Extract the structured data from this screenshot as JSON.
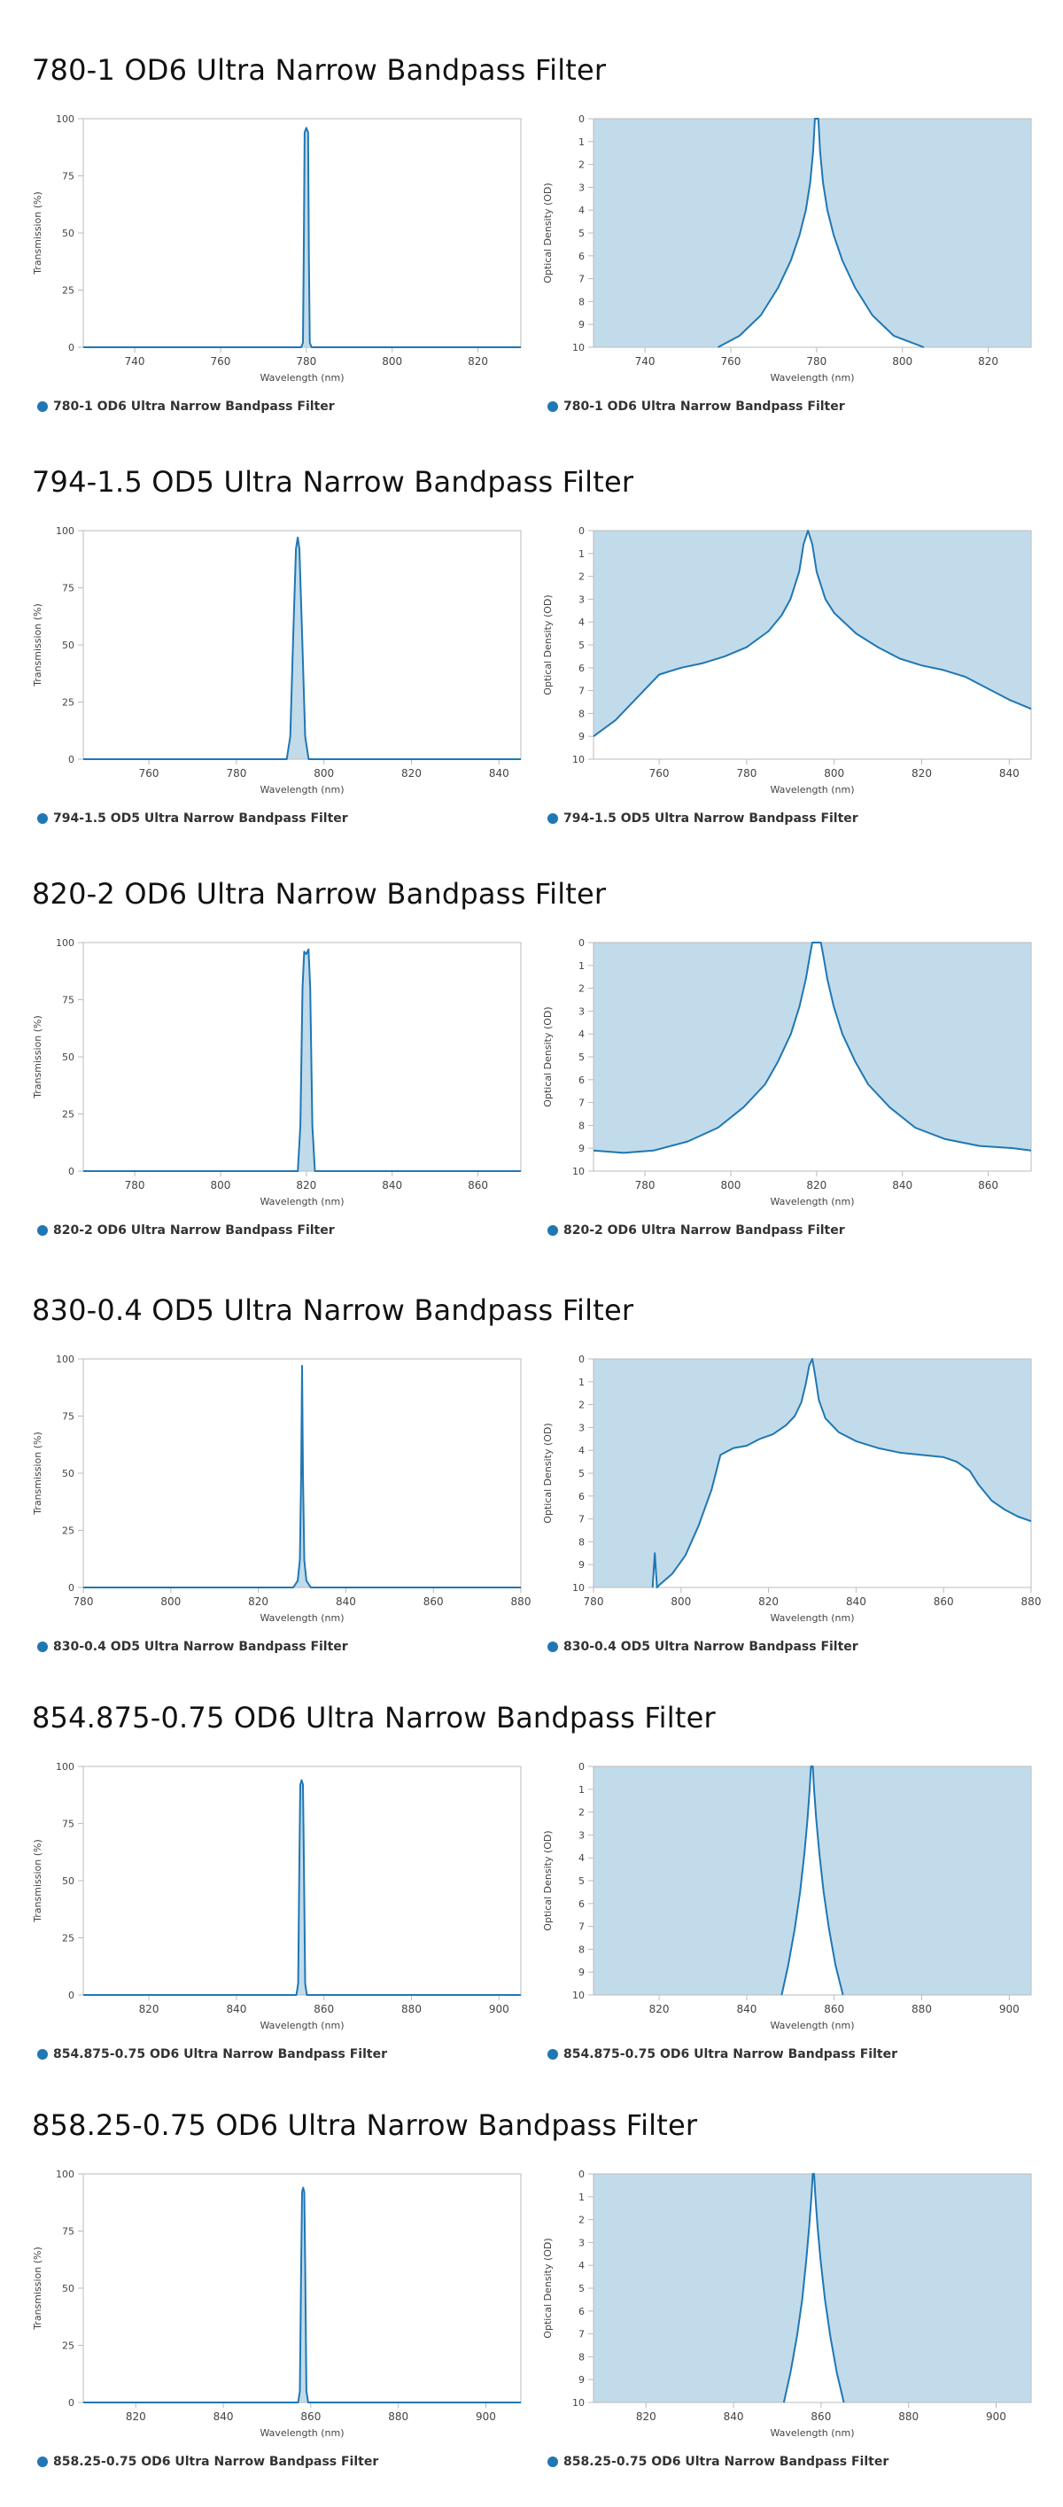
{
  "colors": {
    "series": "#1f77b4",
    "fill": "#c2dbea",
    "axis": "#bbbbbb",
    "tick_text": "#444444"
  },
  "chart_data": [
    {
      "section_title": "780-1 OD6 Ultra Narrow Bandpass Filter",
      "charts": [
        {
          "type": "area",
          "xlabel": "Wavelength (nm)",
          "ylabel": "Transmission (%)",
          "xlim": [
            728,
            830
          ],
          "ylim": [
            0,
            100
          ],
          "xticks": [
            740,
            760,
            780,
            800,
            820
          ],
          "yticks": [
            0,
            25,
            50,
            75,
            100
          ],
          "series": [
            {
              "name": "780-1 OD6 Ultra Narrow Bandpass Filter",
              "x": [
                728,
                778.8,
                779.2,
                779.4,
                779.6,
                780,
                780.4,
                780.6,
                780.8,
                781.2,
                830
              ],
              "y": [
                0,
                0,
                2,
                40,
                94,
                96,
                94,
                40,
                2,
                0,
                0
              ]
            }
          ]
        },
        {
          "type": "area",
          "xlabel": "Wavelength (nm)",
          "ylabel": "Optical Density (OD)",
          "ylim_inverted": true,
          "xlim": [
            728,
            830
          ],
          "ylim": [
            0,
            10
          ],
          "xticks": [
            740,
            760,
            780,
            800,
            820
          ],
          "yticks": [
            0,
            1,
            2,
            3,
            4,
            5,
            6,
            7,
            8,
            9,
            10
          ],
          "series": [
            {
              "name": "780-1 OD6 Ultra Narrow Bandpass Filter",
              "x": [
                757,
                762,
                767,
                771,
                774,
                776,
                777.5,
                778.5,
                779.2,
                779.6,
                780.4,
                780.8,
                781.5,
                782.5,
                784,
                786,
                789,
                793,
                798,
                805
              ],
              "y": [
                10,
                9.5,
                8.6,
                7.4,
                6.2,
                5.1,
                4,
                2.8,
                1.4,
                0,
                0,
                1.4,
                2.8,
                4,
                5.1,
                6.2,
                7.4,
                8.6,
                9.5,
                10
              ]
            }
          ]
        }
      ]
    },
    {
      "section_title": "794-1.5 OD5 Ultra Narrow Bandpass Filter",
      "charts": [
        {
          "type": "area",
          "xlabel": "Wavelength (nm)",
          "ylabel": "Transmission (%)",
          "xlim": [
            745,
            845
          ],
          "ylim": [
            0,
            100
          ],
          "xticks": [
            760,
            780,
            800,
            820,
            840
          ],
          "yticks": [
            0,
            25,
            50,
            75,
            100
          ],
          "series": [
            {
              "name": "794-1.5 OD5 Ultra Narrow Bandpass Filter",
              "x": [
                745,
                791.5,
                792.3,
                793,
                793.6,
                794,
                794.4,
                795,
                795.7,
                796.5,
                845
              ],
              "y": [
                0,
                0,
                10,
                55,
                92,
                97,
                92,
                55,
                10,
                0,
                0
              ]
            }
          ]
        },
        {
          "type": "area",
          "xlabel": "Wavelength (nm)",
          "ylabel": "Optical Density (OD)",
          "ylim_inverted": true,
          "xlim": [
            745,
            845
          ],
          "ylim": [
            0,
            10
          ],
          "xticks": [
            760,
            780,
            800,
            820,
            840
          ],
          "yticks": [
            0,
            1,
            2,
            3,
            4,
            5,
            6,
            7,
            8,
            9,
            10
          ],
          "series": [
            {
              "name": "794-1.5 OD5 Ultra Narrow Bandpass Filter",
              "x": [
                745,
                750,
                755,
                760,
                765,
                770,
                775,
                780,
                785,
                788,
                790,
                792,
                793,
                794,
                795,
                796,
                798,
                800,
                805,
                810,
                815,
                820,
                825,
                830,
                835,
                840,
                845
              ],
              "y": [
                9,
                8.3,
                7.3,
                6.3,
                6.0,
                5.8,
                5.5,
                5.1,
                4.4,
                3.7,
                3.0,
                1.8,
                0.6,
                0,
                0.6,
                1.8,
                3.0,
                3.6,
                4.5,
                5.1,
                5.6,
                5.9,
                6.1,
                6.4,
                6.9,
                7.4,
                7.8
              ]
            }
          ]
        }
      ]
    },
    {
      "section_title": "820-2 OD6 Ultra Narrow Bandpass Filter",
      "charts": [
        {
          "type": "area",
          "xlabel": "Wavelength (nm)",
          "ylabel": "Transmission (%)",
          "xlim": [
            768,
            870
          ],
          "ylim": [
            0,
            100
          ],
          "xticks": [
            780,
            800,
            820,
            840,
            860
          ],
          "yticks": [
            0,
            25,
            50,
            75,
            100
          ],
          "series": [
            {
              "name": "820-2 OD6 Ultra Narrow Bandpass Filter",
              "x": [
                768,
                818,
                818.6,
                819.1,
                819.5,
                820,
                820.5,
                820.9,
                821.4,
                822,
                870
              ],
              "y": [
                0,
                0,
                20,
                80,
                96,
                95,
                97,
                80,
                20,
                0,
                0
              ]
            }
          ]
        },
        {
          "type": "area",
          "xlabel": "Wavelength (nm)",
          "ylabel": "Optical Density (OD)",
          "ylim_inverted": true,
          "xlim": [
            768,
            870
          ],
          "ylim": [
            0,
            10
          ],
          "xticks": [
            780,
            800,
            820,
            840,
            860
          ],
          "yticks": [
            0,
            1,
            2,
            3,
            4,
            5,
            6,
            7,
            8,
            9,
            10
          ],
          "series": [
            {
              "name": "820-2 OD6 Ultra Narrow Bandpass Filter",
              "x": [
                768,
                775,
                782,
                790,
                797,
                803,
                808,
                811,
                814,
                816,
                817.5,
                818.5,
                819,
                821,
                821.5,
                822.5,
                824,
                826,
                829,
                832,
                837,
                843,
                850,
                858,
                866,
                870
              ],
              "y": [
                9.1,
                9.2,
                9.1,
                8.7,
                8.1,
                7.2,
                6.2,
                5.2,
                4.0,
                2.8,
                1.6,
                0.5,
                0,
                0,
                0.5,
                1.6,
                2.8,
                4.0,
                5.2,
                6.2,
                7.2,
                8.1,
                8.6,
                8.9,
                9.0,
                9.1
              ]
            }
          ]
        }
      ]
    },
    {
      "section_title": "830-0.4 OD5 Ultra Narrow Bandpass Filter",
      "charts": [
        {
          "type": "area",
          "xlabel": "Wavelength (nm)",
          "ylabel": "Transmission (%)",
          "xlim": [
            780,
            880
          ],
          "ylim": [
            0,
            100
          ],
          "xticks": [
            780,
            800,
            820,
            840,
            860,
            880
          ],
          "yticks": [
            0,
            25,
            50,
            75,
            100
          ],
          "series": [
            {
              "name": "830-0.4 OD5 Ultra Narrow Bandpass Filter",
              "x": [
                780,
                828,
                829,
                829.5,
                829.8,
                830,
                830.2,
                830.5,
                831,
                832,
                880
              ],
              "y": [
                0,
                0,
                3,
                12,
                50,
                97,
                50,
                12,
                3,
                0,
                0
              ]
            }
          ]
        },
        {
          "type": "area",
          "xlabel": "Wavelength (nm)",
          "ylabel": "Optical Density (OD)",
          "ylim_inverted": true,
          "xlim": [
            780,
            880
          ],
          "ylim": [
            0,
            10
          ],
          "xticks": [
            780,
            800,
            820,
            840,
            860,
            880
          ],
          "yticks": [
            0,
            1,
            2,
            3,
            4,
            5,
            6,
            7,
            8,
            9,
            10
          ],
          "series": [
            {
              "name": "830-0.4 OD5 Ultra Narrow Bandpass Filter",
              "x": [
                793.5,
                794,
                794.5,
                795,
                798,
                801,
                804,
                807,
                809,
                810,
                812,
                815,
                818,
                821,
                824,
                826,
                827.5,
                828.5,
                829.3,
                830,
                830.7,
                831.5,
                833,
                836,
                840,
                845,
                850,
                855,
                860,
                863,
                866,
                868,
                871,
                874,
                877,
                880
              ],
              "y": [
                10,
                8.5,
                10,
                9.9,
                9.4,
                8.6,
                7.3,
                5.7,
                4.2,
                4.1,
                3.9,
                3.8,
                3.5,
                3.3,
                2.9,
                2.5,
                1.9,
                1.1,
                0.3,
                0,
                0.8,
                1.8,
                2.6,
                3.2,
                3.6,
                3.9,
                4.1,
                4.2,
                4.3,
                4.5,
                4.9,
                5.5,
                6.2,
                6.6,
                6.9,
                7.1
              ]
            }
          ]
        }
      ]
    },
    {
      "section_title": "854.875-0.75 OD6 Ultra Narrow Bandpass Filter",
      "charts": [
        {
          "type": "area",
          "xlabel": "Wavelength (nm)",
          "ylabel": "Transmission (%)",
          "xlim": [
            805,
            905
          ],
          "ylim": [
            0,
            100
          ],
          "xticks": [
            820,
            840,
            860,
            880,
            900
          ],
          "yticks": [
            0,
            25,
            50,
            75,
            100
          ],
          "series": [
            {
              "name": "854.875-0.75 OD6 Ultra Narrow Bandpass Filter",
              "x": [
                805,
                853.7,
                854.1,
                854.4,
                854.6,
                854.9,
                855.2,
                855.4,
                855.7,
                856.1,
                905
              ],
              "y": [
                0,
                0,
                5,
                60,
                92,
                94,
                92,
                60,
                5,
                0,
                0
              ]
            }
          ]
        },
        {
          "type": "area",
          "xlabel": "Wavelength (nm)",
          "ylabel": "Optical Density (OD)",
          "ylim_inverted": true,
          "xlim": [
            805,
            905
          ],
          "ylim": [
            0,
            10
          ],
          "xticks": [
            820,
            840,
            860,
            880,
            900
          ],
          "yticks": [
            0,
            1,
            2,
            3,
            4,
            5,
            6,
            7,
            8,
            9,
            10
          ],
          "series": [
            {
              "name": "854.875-0.75 OD6 Ultra Narrow Bandpass Filter",
              "x": [
                848,
                849.5,
                851,
                852.2,
                853.2,
                853.9,
                854.4,
                854.7,
                855.1,
                855.4,
                855.9,
                856.6,
                857.6,
                858.8,
                860.3,
                862
              ],
              "y": [
                10,
                8.7,
                7.1,
                5.5,
                3.8,
                2.3,
                1.0,
                0,
                0,
                1.0,
                2.3,
                3.8,
                5.5,
                7.1,
                8.7,
                10
              ]
            }
          ]
        }
      ]
    },
    {
      "section_title": "858.25-0.75 OD6 Ultra Narrow Bandpass Filter",
      "charts": [
        {
          "type": "area",
          "xlabel": "Wavelength (nm)",
          "ylabel": "Transmission (%)",
          "xlim": [
            808,
            908
          ],
          "ylim": [
            0,
            100
          ],
          "xticks": [
            820,
            840,
            860,
            880,
            900
          ],
          "yticks": [
            0,
            25,
            50,
            75,
            100
          ],
          "series": [
            {
              "name": "858.25-0.75 OD6 Ultra Narrow Bandpass Filter",
              "x": [
                808,
                857.1,
                857.5,
                857.8,
                858,
                858.25,
                858.5,
                858.7,
                859,
                859.4,
                908
              ],
              "y": [
                0,
                0,
                5,
                60,
                92,
                94,
                92,
                60,
                5,
                0,
                0
              ]
            }
          ]
        },
        {
          "type": "area",
          "xlabel": "Wavelength (nm)",
          "ylabel": "Optical Density (OD)",
          "ylim_inverted": true,
          "xlim": [
            808,
            908
          ],
          "ylim": [
            0,
            10
          ],
          "xticks": [
            820,
            840,
            860,
            880,
            900
          ],
          "yticks": [
            0,
            1,
            2,
            3,
            4,
            5,
            6,
            7,
            8,
            9,
            10
          ],
          "series": [
            {
              "name": "858.25-0.75 OD6 Ultra Narrow Bandpass Filter",
              "x": [
                851.5,
                853,
                854.5,
                855.7,
                856.6,
                857.3,
                857.8,
                858.1,
                858.4,
                858.7,
                859.2,
                859.9,
                860.9,
                862.1,
                863.6,
                865.2
              ],
              "y": [
                10,
                8.7,
                7.1,
                5.5,
                3.8,
                2.3,
                1.0,
                0,
                0,
                1.0,
                2.3,
                3.8,
                5.5,
                7.1,
                8.7,
                10
              ]
            }
          ]
        }
      ]
    }
  ]
}
